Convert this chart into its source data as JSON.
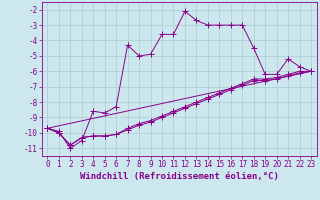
{
  "xlabel": "Windchill (Refroidissement éolien,°C)",
  "background_color": "#cce8ee",
  "grid_color": "#aaccd0",
  "line_color": "#880088",
  "xlim": [
    -0.5,
    23.5
  ],
  "ylim": [
    -11.5,
    -1.5
  ],
  "yticks": [
    -2,
    -3,
    -4,
    -5,
    -6,
    -7,
    -8,
    -9,
    -10,
    -11
  ],
  "xticks": [
    0,
    1,
    2,
    3,
    4,
    5,
    6,
    7,
    8,
    9,
    10,
    11,
    12,
    13,
    14,
    15,
    16,
    17,
    18,
    19,
    20,
    21,
    22,
    23
  ],
  "series1_x": [
    0,
    1,
    2,
    3,
    4,
    5,
    6,
    7,
    8,
    9,
    10,
    11,
    12,
    13,
    14,
    15,
    16,
    17,
    18,
    19,
    20,
    21,
    22,
    23
  ],
  "series1_y": [
    -9.7,
    -9.9,
    -11.0,
    -10.5,
    -8.6,
    -8.7,
    -8.3,
    -4.3,
    -5.0,
    -4.9,
    -3.6,
    -3.6,
    -2.1,
    -2.7,
    -3.0,
    -3.0,
    -3.0,
    -3.0,
    -4.5,
    -6.2,
    -6.2,
    -5.2,
    -5.7,
    -6.0
  ],
  "series2_x": [
    0,
    1,
    2,
    3,
    4,
    5,
    6,
    7,
    8,
    9,
    10,
    11,
    12,
    13,
    14,
    15,
    16,
    17,
    18,
    19,
    20,
    21,
    22,
    23
  ],
  "series2_y": [
    -9.7,
    -10.0,
    -10.8,
    -10.3,
    -10.2,
    -10.2,
    -10.1,
    -9.8,
    -9.5,
    -9.3,
    -9.0,
    -8.7,
    -8.4,
    -8.1,
    -7.8,
    -7.5,
    -7.2,
    -6.9,
    -6.6,
    -6.6,
    -6.5,
    -6.3,
    -6.1,
    -6.0
  ],
  "series3_x": [
    0,
    1,
    2,
    3,
    4,
    5,
    6,
    7,
    8,
    9,
    10,
    11,
    12,
    13,
    14,
    15,
    16,
    17,
    18,
    19,
    20,
    21,
    22,
    23
  ],
  "series3_y": [
    -9.7,
    -10.0,
    -10.8,
    -10.3,
    -10.2,
    -10.2,
    -10.1,
    -9.7,
    -9.4,
    -9.2,
    -8.9,
    -8.6,
    -8.3,
    -8.0,
    -7.7,
    -7.4,
    -7.1,
    -6.8,
    -6.5,
    -6.5,
    -6.4,
    -6.2,
    -6.0,
    -6.0
  ],
  "series4_x": [
    0,
    23
  ],
  "series4_y": [
    -9.7,
    -6.0
  ],
  "xlabel_fontsize": 6.5,
  "tick_fontsize": 5.5,
  "marker_size": 2.5,
  "lw": 0.7
}
